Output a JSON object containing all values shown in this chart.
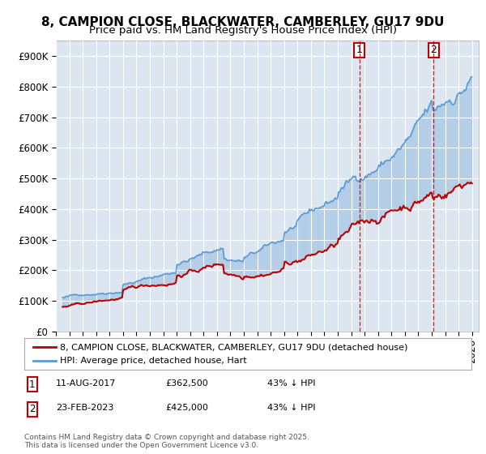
{
  "title1": "8, CAMPION CLOSE, BLACKWATER, CAMBERLEY, GU17 9DU",
  "title2": "Price paid vs. HM Land Registry's House Price Index (HPI)",
  "ylabel_ticks": [
    "£0",
    "£100K",
    "£200K",
    "£300K",
    "£400K",
    "£500K",
    "£600K",
    "£700K",
    "£800K",
    "£900K"
  ],
  "ytick_values": [
    0,
    100000,
    200000,
    300000,
    400000,
    500000,
    600000,
    700000,
    800000,
    900000
  ],
  "ylim": [
    0,
    950000
  ],
  "xlim_start": 1995.3,
  "xlim_end": 2026.5,
  "hpi_color": "#5b9bd5",
  "property_color": "#c00000",
  "marker1_date": 2017.61,
  "marker1_price": 362500,
  "marker2_date": 2023.14,
  "marker2_price": 425000,
  "legend_property": "8, CAMPION CLOSE, BLACKWATER, CAMBERLEY, GU17 9DU (detached house)",
  "legend_hpi": "HPI: Average price, detached house, Hart",
  "annotation1_label": "1",
  "annotation1_date": "11-AUG-2017",
  "annotation1_price": "£362,500",
  "annotation1_hpi": "43% ↓ HPI",
  "annotation2_label": "2",
  "annotation2_date": "23-FEB-2023",
  "annotation2_price": "£425,000",
  "annotation2_hpi": "43% ↓ HPI",
  "footer": "Contains HM Land Registry data © Crown copyright and database right 2025.\nThis data is licensed under the Open Government Licence v3.0.",
  "bg_color": "#ffffff",
  "plot_bg_color": "#dce6f1",
  "grid_color": "#ffffff",
  "title_fontsize": 11,
  "subtitle_fontsize": 9.5,
  "tick_fontsize": 8.5,
  "legend_fontsize": 8,
  "annotation_fontsize": 8
}
